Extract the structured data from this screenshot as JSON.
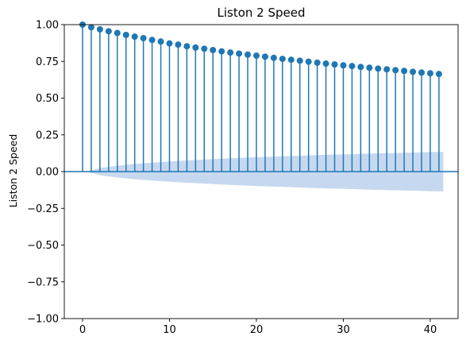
{
  "chart_data": {
    "type": "stem",
    "title": "Liston 2 Speed",
    "xlabel": "",
    "ylabel": "Liston 2 Speed",
    "xlim": [
      -2.1,
      43.2
    ],
    "ylim": [
      -1.0,
      1.0
    ],
    "xticks": [
      0,
      10,
      20,
      30,
      40
    ],
    "xtick_labels": [
      "0",
      "10",
      "20",
      "30",
      "40"
    ],
    "yticks": [
      1.0,
      0.75,
      0.5,
      0.25,
      0.0,
      -0.25,
      -0.5,
      -0.75,
      -1.0
    ],
    "ytick_labels": [
      "1.00",
      "0.75",
      "0.50",
      "0.25",
      "0.00",
      "−0.25",
      "−0.50",
      "−0.75",
      "−1.00"
    ],
    "grid": false,
    "legend": "none",
    "colors": {
      "stem": "#1f77b4",
      "marker": "#1f77b4",
      "band": "#aec7e8",
      "zero_line": "#1f77b4"
    },
    "lags": [
      0,
      1,
      2,
      3,
      4,
      5,
      6,
      7,
      8,
      9,
      10,
      11,
      12,
      13,
      14,
      15,
      16,
      17,
      18,
      19,
      20,
      21,
      22,
      23,
      24,
      25,
      26,
      27,
      28,
      29,
      30,
      31,
      32,
      33,
      34,
      35,
      36,
      37,
      38,
      39,
      40,
      41
    ],
    "values": [
      1.0,
      0.982,
      0.968,
      0.955,
      0.943,
      0.93,
      0.918,
      0.908,
      0.896,
      0.885,
      0.872,
      0.864,
      0.853,
      0.844,
      0.836,
      0.827,
      0.818,
      0.81,
      0.803,
      0.796,
      0.789,
      0.782,
      0.774,
      0.767,
      0.761,
      0.755,
      0.748,
      0.741,
      0.735,
      0.729,
      0.723,
      0.718,
      0.712,
      0.707,
      0.701,
      0.696,
      0.69,
      0.685,
      0.679,
      0.674,
      0.669,
      0.664
    ],
    "confidence_band": {
      "x": [
        0.5,
        2,
        4,
        6,
        8,
        10,
        12,
        14,
        16,
        18,
        20,
        22,
        24,
        26,
        28,
        30,
        32,
        34,
        36,
        38,
        40,
        41.5
      ],
      "upper": [
        0.0,
        0.024,
        0.04,
        0.052,
        0.061,
        0.069,
        0.076,
        0.082,
        0.088,
        0.093,
        0.098,
        0.102,
        0.106,
        0.11,
        0.114,
        0.117,
        0.121,
        0.124,
        0.127,
        0.13,
        0.133,
        0.135
      ]
    }
  }
}
